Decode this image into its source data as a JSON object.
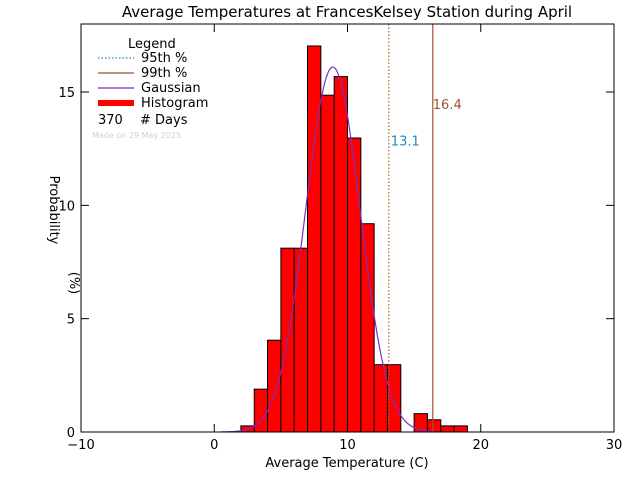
{
  "chart_data": {
    "type": "bar",
    "title": "Average Temperatures at FrancesKelsey Station during April",
    "xlabel": "Average Temperature (C)",
    "ylabel": "Probability (%)",
    "xlim": [
      -10,
      30
    ],
    "ylim": [
      0,
      18
    ],
    "xticks": [
      -10,
      0,
      10,
      20,
      30
    ],
    "yticks": [
      0,
      5,
      10,
      15
    ],
    "bin_width": 1,
    "bins": [
      {
        "x0": 2,
        "value": 0.27
      },
      {
        "x0": 3,
        "value": 1.89
      },
      {
        "x0": 4,
        "value": 4.05
      },
      {
        "x0": 5,
        "value": 8.11
      },
      {
        "x0": 6,
        "value": 8.11
      },
      {
        "x0": 7,
        "value": 17.03
      },
      {
        "x0": 8,
        "value": 14.86
      },
      {
        "x0": 9,
        "value": 15.68
      },
      {
        "x0": 10,
        "value": 12.97
      },
      {
        "x0": 11,
        "value": 9.19
      },
      {
        "x0": 12,
        "value": 2.97
      },
      {
        "x0": 13,
        "value": 2.97
      },
      {
        "x0": 15,
        "value": 0.81
      },
      {
        "x0": 16,
        "value": 0.54
      },
      {
        "x0": 17,
        "value": 0.27
      },
      {
        "x0": 18,
        "value": 0.27
      }
    ],
    "gaussian": {
      "mean": 8.9,
      "sd": 2.05,
      "peak": 16.1,
      "x_from": 0.5,
      "x_to": 16.5
    },
    "p95": {
      "value": 13.1,
      "label": "13.1",
      "color": "#b5651d",
      "label_color": "#1e88c8"
    },
    "p99": {
      "value": 16.4,
      "label": "16.4",
      "color": "#a0522d",
      "label_color": "#a0522d"
    },
    "legend": {
      "title": "Legend",
      "items": [
        {
          "label": "95th %",
          "style": "dotted",
          "color": "#1e88c8"
        },
        {
          "label": "99th %",
          "style": "solid",
          "color": "#a0522d"
        },
        {
          "label": "Gaussian",
          "style": "solid",
          "color": "#7b2fbe"
        },
        {
          "label": "Histogram",
          "style": "thick",
          "color": "#ff0000"
        }
      ],
      "count": "370",
      "count_label": "# Days",
      "made_on": "Made on 29 May 2025"
    },
    "colors": {
      "bar_fill": "#ff0000",
      "bar_edge": "#000000",
      "gaussian": "#7b2fbe"
    }
  }
}
